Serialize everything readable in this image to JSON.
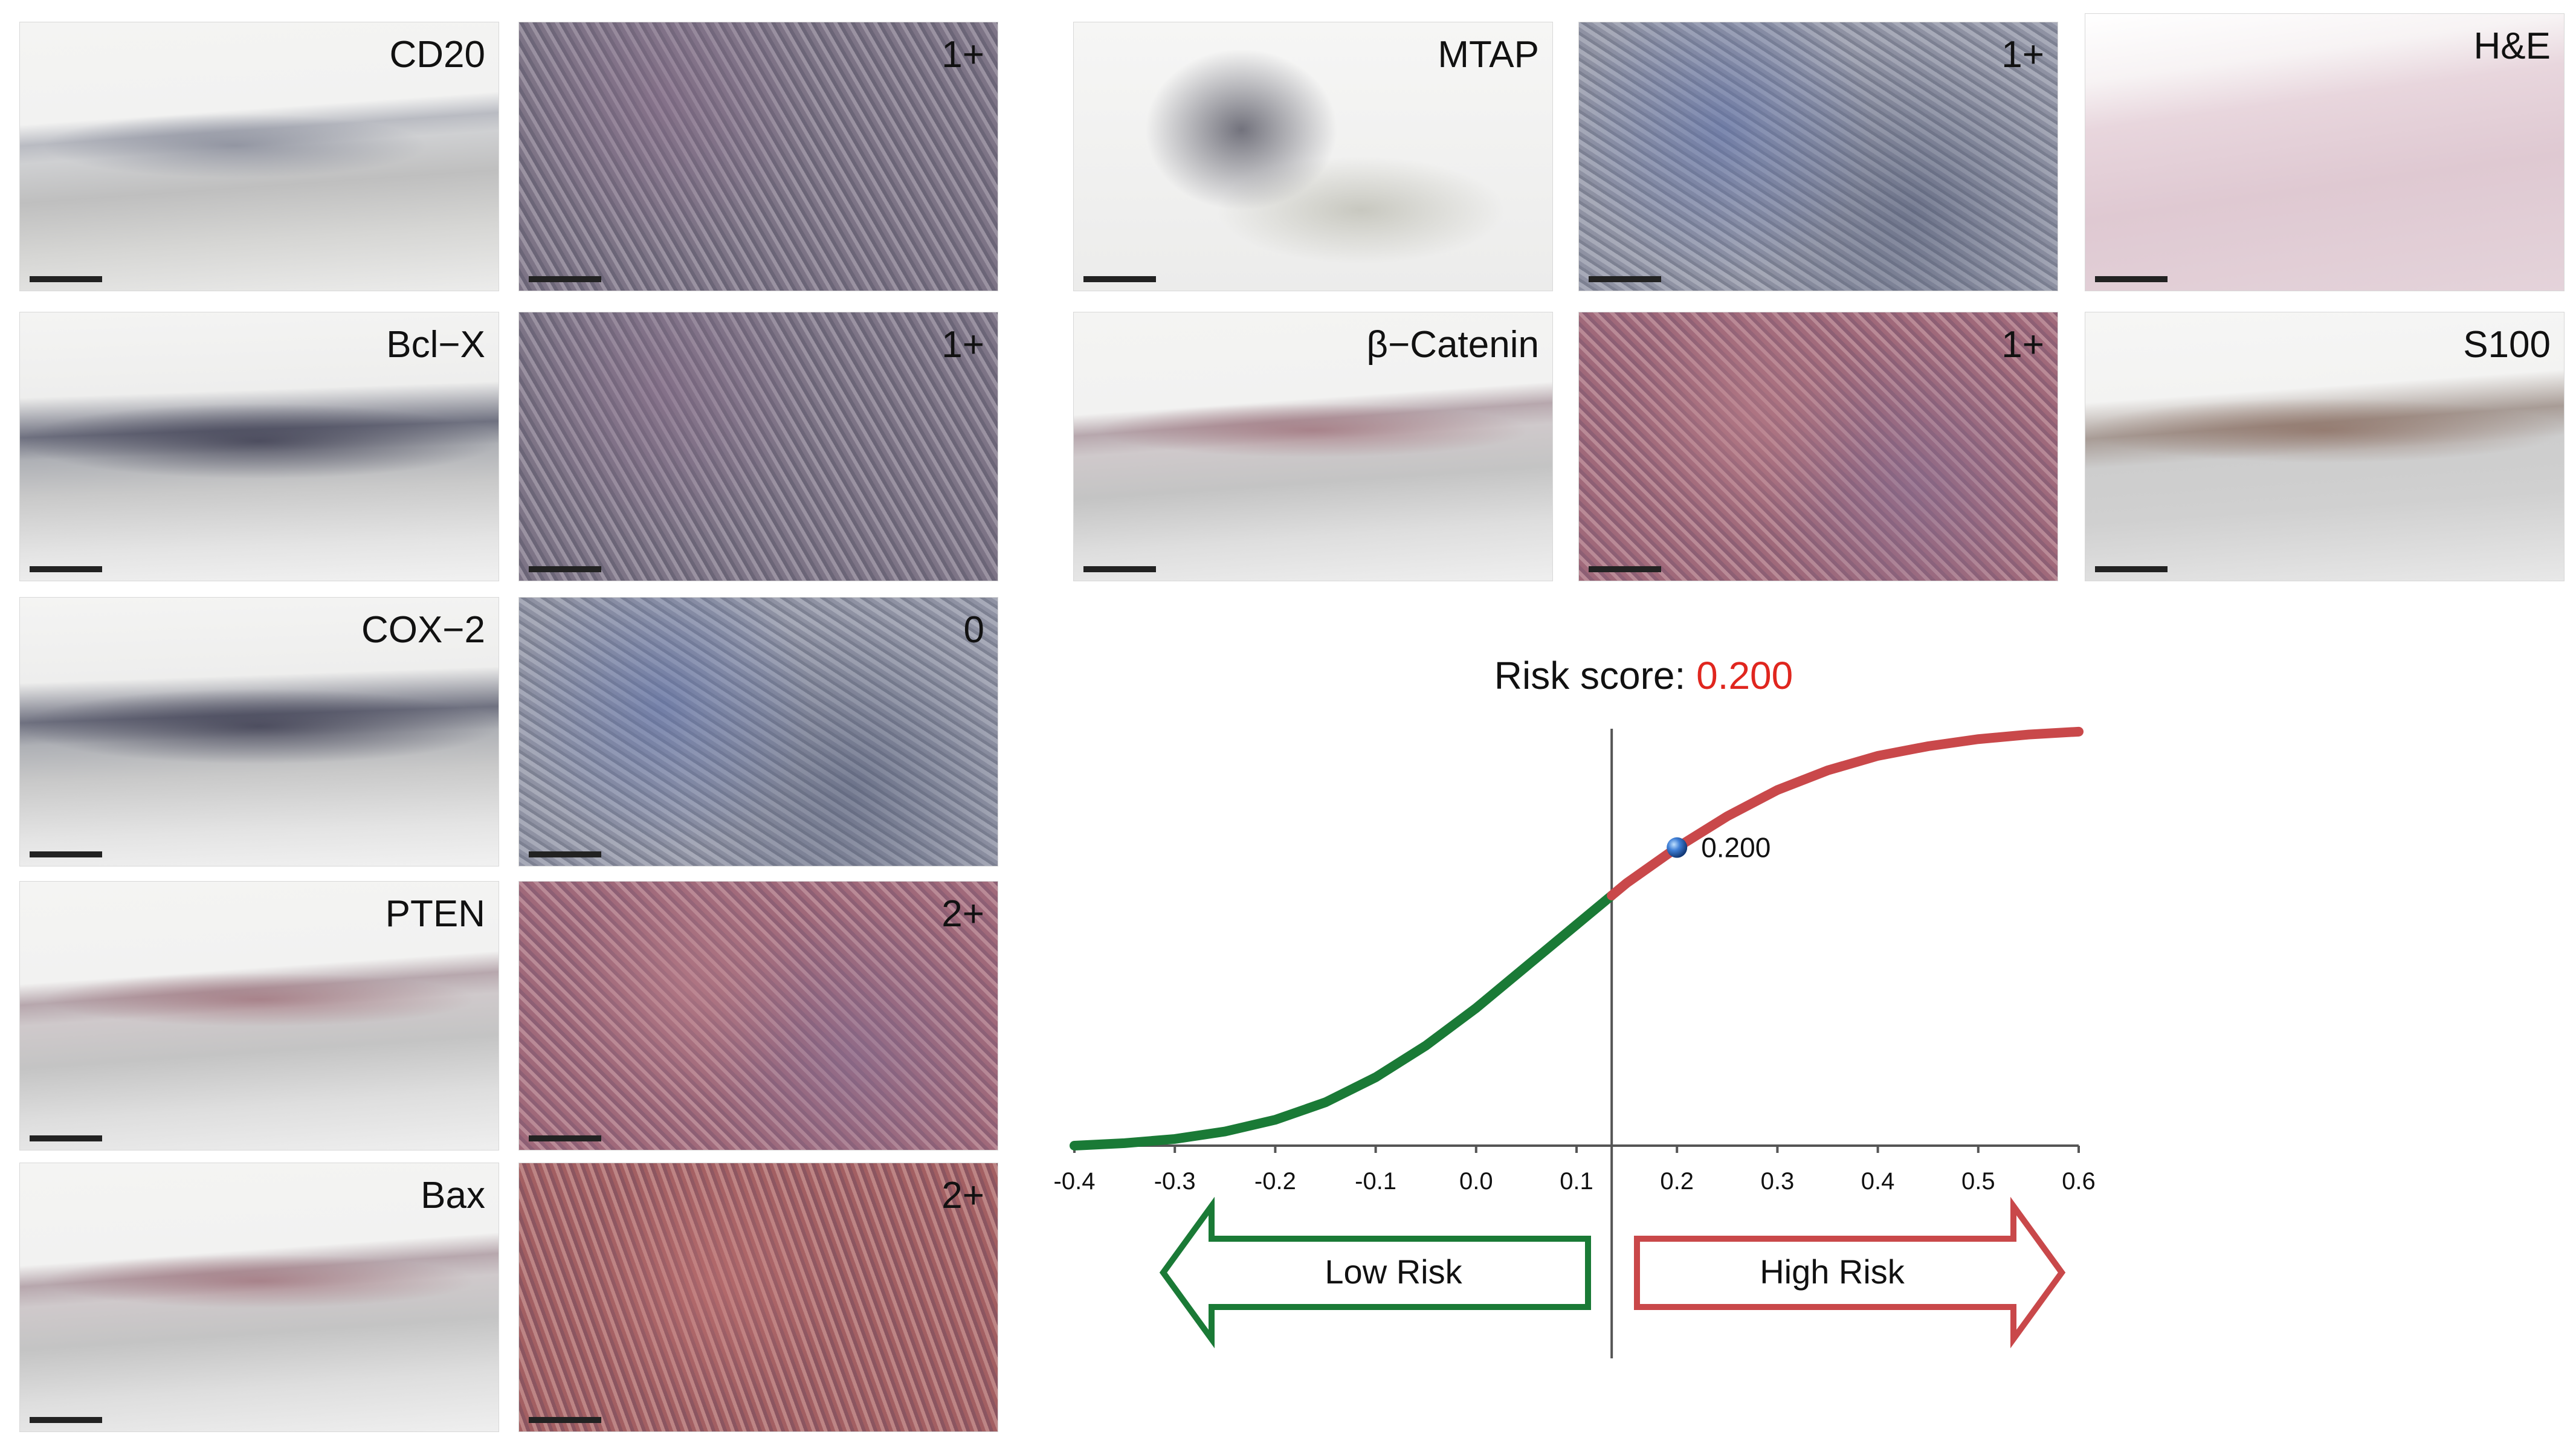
{
  "panels": {
    "cd20_low": {
      "label": "CD20"
    },
    "cd20_high": {
      "label": "1+"
    },
    "bclx_low": {
      "label": "Bcl−X"
    },
    "bclx_high": {
      "label": "1+"
    },
    "cox2_low": {
      "label": "COX−2"
    },
    "cox2_high": {
      "label": "0"
    },
    "pten_low": {
      "label": "PTEN"
    },
    "pten_high": {
      "label": "2+"
    },
    "bax_low": {
      "label": "Bax"
    },
    "bax_high": {
      "label": "2+"
    },
    "mtap_low": {
      "label": "MTAP"
    },
    "mtap_high": {
      "label": "1+"
    },
    "he": {
      "label": "H&E"
    },
    "bcat_low": {
      "label": "β−Catenin"
    },
    "bcat_high": {
      "label": "1+"
    },
    "s100": {
      "label": "S100"
    }
  },
  "risk": {
    "title_prefix": "Risk score: ",
    "title_value": "0.200",
    "value_color": "#e0261e",
    "low_label": "Low Risk",
    "high_label": "High Risk",
    "low_color": "#1a7a36",
    "high_color": "#c9484a"
  },
  "chart_data": {
    "type": "line",
    "description_free": true,
    "x_ticks": [
      "-0.4",
      "-0.3",
      "-0.2",
      "-0.1",
      "0.0",
      "0.1",
      "0.2",
      "0.3",
      "0.4",
      "0.5",
      "0.6"
    ],
    "xlim": [
      -0.4,
      0.6
    ],
    "threshold": 0.135,
    "marker": {
      "x": 0.2,
      "label": "0.200"
    },
    "curve_x": [
      -0.4,
      -0.35,
      -0.3,
      -0.25,
      -0.2,
      -0.15,
      -0.1,
      -0.05,
      0.0,
      0.05,
      0.1,
      0.135,
      0.15,
      0.2,
      0.25,
      0.3,
      0.35,
      0.4,
      0.45,
      0.5,
      0.55,
      0.6
    ],
    "curve_y": [
      0.0,
      0.006,
      0.016,
      0.034,
      0.062,
      0.104,
      0.164,
      0.24,
      0.33,
      0.43,
      0.53,
      0.6,
      0.63,
      0.715,
      0.79,
      0.853,
      0.9,
      0.935,
      0.958,
      0.975,
      0.986,
      0.993
    ],
    "ylim": [
      0,
      1
    ]
  }
}
